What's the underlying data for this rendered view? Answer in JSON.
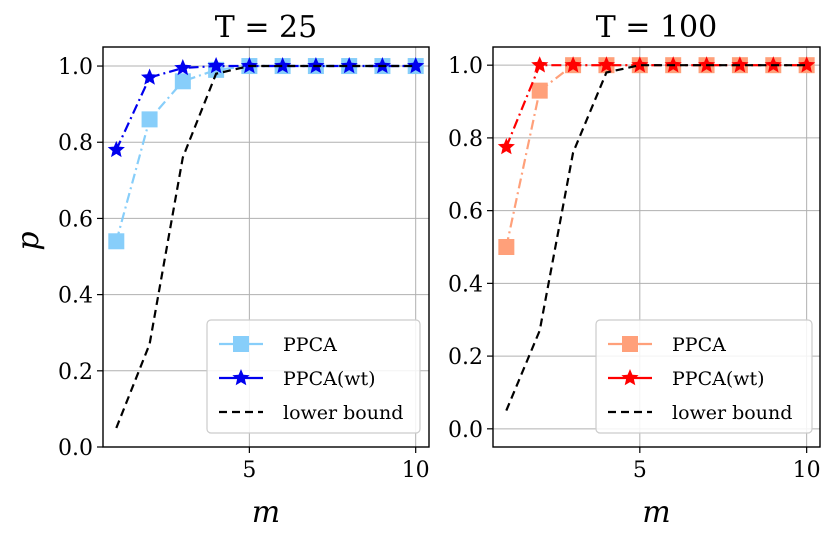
{
  "chart_data": [
    {
      "type": "line",
      "title": "T = 25",
      "xlabel": "m",
      "ylabel": "p",
      "xlim": [
        0.6,
        10.4
      ],
      "ylim": [
        0.0,
        1.05
      ],
      "xticks": [
        5,
        10
      ],
      "yticks": [
        0.0,
        0.2,
        0.4,
        0.6,
        0.8,
        1.0
      ],
      "ytick_labels": [
        "0.0",
        "0.2",
        "0.4",
        "0.6",
        "0.8",
        "1.0"
      ],
      "xtick_labels": [
        "5",
        "10"
      ],
      "grid": true,
      "legend_position": "bottom-right",
      "x": [
        1,
        2,
        3,
        4,
        5,
        6,
        7,
        8,
        9,
        10
      ],
      "series": [
        {
          "name": "PPCA",
          "values": [
            0.54,
            0.86,
            0.96,
            0.99,
            1.0,
            1.0,
            1.0,
            1.0,
            1.0,
            1.0
          ],
          "color": "#87cefa",
          "marker": "square",
          "line": "dashdot"
        },
        {
          "name": "PPCA(wt)",
          "values": [
            0.78,
            0.97,
            0.995,
            1.0,
            1.0,
            1.0,
            1.0,
            1.0,
            1.0,
            1.0
          ],
          "color": "#0000ee",
          "marker": "star",
          "line": "dashdot"
        },
        {
          "name": "lower bound",
          "values": [
            0.05,
            0.27,
            0.76,
            0.98,
            1.0,
            1.0,
            1.0,
            1.0,
            1.0,
            1.0
          ],
          "color": "#000000",
          "marker": "none",
          "line": "dashed"
        }
      ]
    },
    {
      "type": "line",
      "title": "T = 100",
      "xlabel": "m",
      "ylabel": "",
      "xlim": [
        0.6,
        10.4
      ],
      "ylim": [
        -0.05,
        1.05
      ],
      "xticks": [
        5,
        10
      ],
      "yticks": [
        0.0,
        0.2,
        0.4,
        0.6,
        0.8,
        1.0
      ],
      "ytick_labels": [
        "0.0",
        "0.2",
        "0.4",
        "0.6",
        "0.8",
        "1.0"
      ],
      "xtick_labels": [
        "5",
        "10"
      ],
      "grid": true,
      "legend_position": "bottom-right",
      "x": [
        1,
        2,
        3,
        4,
        5,
        6,
        7,
        8,
        9,
        10
      ],
      "series": [
        {
          "name": "PPCA",
          "values": [
            0.5,
            0.93,
            1.0,
            1.0,
            1.0,
            1.0,
            1.0,
            1.0,
            1.0,
            1.0
          ],
          "color": "#ffa07a",
          "marker": "square",
          "line": "dashdot"
        },
        {
          "name": "PPCA(wt)",
          "values": [
            0.775,
            1.0,
            1.0,
            1.0,
            1.0,
            1.0,
            1.0,
            1.0,
            1.0,
            1.0
          ],
          "color": "#ff0000",
          "marker": "star",
          "line": "dashdot"
        },
        {
          "name": "lower bound",
          "values": [
            0.05,
            0.27,
            0.76,
            0.98,
            1.0,
            1.0,
            1.0,
            1.0,
            1.0,
            1.0
          ],
          "color": "#000000",
          "marker": "none",
          "line": "dashed"
        }
      ]
    }
  ]
}
